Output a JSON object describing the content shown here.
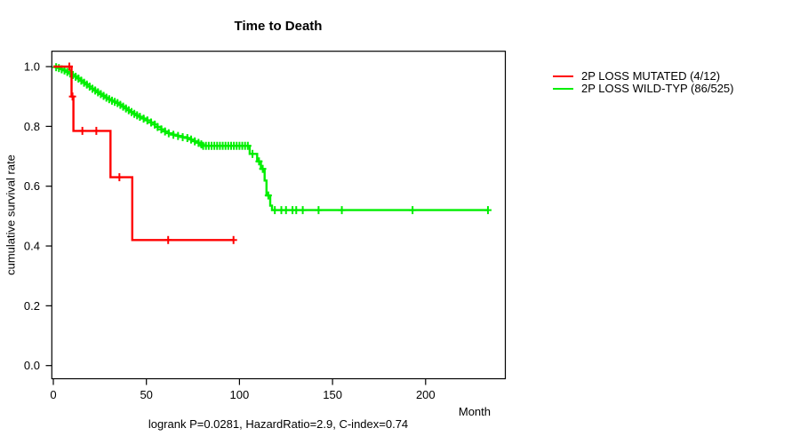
{
  "chart_data": {
    "type": "line",
    "subtype": "kaplan-meier-step-survival",
    "title": "Time to Death",
    "xlabel": "Month",
    "ylabel": "cumulative survival rate",
    "annotation": "logrank P=0.0281, HazardRatio=2.9, C-index=0.74",
    "xlim": [
      -1,
      243
    ],
    "ylim": [
      -0.04,
      1.04
    ],
    "xticks": [
      0,
      50,
      100,
      150,
      200
    ],
    "yticks": [
      0.0,
      0.2,
      0.4,
      0.6,
      0.8,
      1.0
    ],
    "grid": false,
    "legend_position": "right-outside",
    "axis_color": "#000000",
    "background_color": "#ffffff",
    "series": [
      {
        "name": "2P LOSS MUTATED (4/12)",
        "events_over_total": "4/12",
        "color": "#ff0000",
        "steps": [
          [
            0,
            1.0
          ],
          [
            9.8,
            1.0
          ],
          [
            9.8,
            0.9
          ],
          [
            10.8,
            0.9
          ],
          [
            10.8,
            0.785
          ],
          [
            30.7,
            0.785
          ],
          [
            30.7,
            0.63
          ],
          [
            42.4,
            0.63
          ],
          [
            42.4,
            0.42
          ],
          [
            96.8,
            0.42
          ]
        ],
        "censor_months": [
          8.6,
          10.3,
          15.6,
          23.1,
          35.5,
          61.7,
          96.8
        ]
      },
      {
        "name": "2P LOSS WILD-TYP (86/525)",
        "events_over_total": "86/525",
        "color": "#00ee00",
        "steps": [
          [
            0,
            1.0
          ],
          [
            1.5,
            0.998
          ],
          [
            3,
            0.995
          ],
          [
            4.5,
            0.991
          ],
          [
            6,
            0.987
          ],
          [
            7.5,
            0.982
          ],
          [
            9,
            0.977
          ],
          [
            10.5,
            0.972
          ],
          [
            12,
            0.966
          ],
          [
            13.5,
            0.96
          ],
          [
            15,
            0.953
          ],
          [
            16.5,
            0.946
          ],
          [
            18,
            0.94
          ],
          [
            19.5,
            0.933
          ],
          [
            21,
            0.926
          ],
          [
            22.5,
            0.92
          ],
          [
            24,
            0.914
          ],
          [
            25.5,
            0.908
          ],
          [
            27,
            0.902
          ],
          [
            28.5,
            0.896
          ],
          [
            30,
            0.891
          ],
          [
            31.5,
            0.886
          ],
          [
            33,
            0.882
          ],
          [
            34.5,
            0.878
          ],
          [
            36,
            0.872
          ],
          [
            37.5,
            0.866
          ],
          [
            39,
            0.86
          ],
          [
            40.5,
            0.854
          ],
          [
            42,
            0.848
          ],
          [
            43.5,
            0.842
          ],
          [
            45,
            0.837
          ],
          [
            46.5,
            0.832
          ],
          [
            48.5,
            0.826
          ],
          [
            50.5,
            0.82
          ],
          [
            52.5,
            0.813
          ],
          [
            54.5,
            0.806
          ],
          [
            56,
            0.798
          ],
          [
            58,
            0.79
          ],
          [
            60,
            0.783
          ],
          [
            62,
            0.777
          ],
          [
            64.5,
            0.772
          ],
          [
            67,
            0.768
          ],
          [
            69.5,
            0.764
          ],
          [
            72,
            0.761
          ],
          [
            74,
            0.756
          ],
          [
            76,
            0.75
          ],
          [
            78,
            0.745
          ],
          [
            79.5,
            0.74
          ],
          [
            80.5,
            0.735
          ],
          [
            105.5,
            0.708
          ],
          [
            109.5,
            0.683
          ],
          [
            111.5,
            0.658
          ],
          [
            113.5,
            0.619
          ],
          [
            114.5,
            0.569
          ],
          [
            116.5,
            0.535
          ],
          [
            117.5,
            0.52
          ],
          [
            233.5,
            0.52
          ]
        ],
        "censor_months": [
          82,
          83.5,
          85,
          86.5,
          88,
          89.5,
          91,
          92.5,
          94,
          95.5,
          97,
          98.5,
          100,
          101.5,
          103,
          104.5,
          107,
          110.5,
          112.5,
          115.5,
          119,
          122.5,
          125,
          128.5,
          130.5,
          134,
          142.5,
          155,
          193,
          233.5
        ],
        "dense_censor_upto": 81
      }
    ]
  }
}
